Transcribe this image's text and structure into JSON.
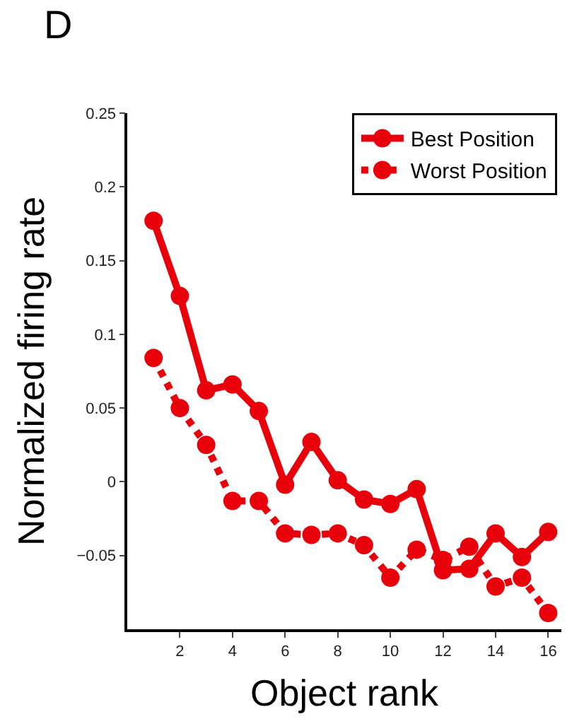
{
  "chart_data": {
    "type": "line",
    "xlabel": "Object rank",
    "ylabel": "Normalized firing rate",
    "annotations": [
      "D"
    ],
    "x": [
      1,
      2,
      3,
      4,
      5,
      6,
      7,
      8,
      9,
      10,
      11,
      12,
      13,
      14,
      15,
      16
    ],
    "series": [
      {
        "name": "Best Position",
        "color": "#e8000b",
        "line_style": "solid",
        "values": [
          0.177,
          0.126,
          0.062,
          0.066,
          0.048,
          -0.002,
          0.027,
          0.001,
          -0.012,
          -0.015,
          -0.005,
          -0.06,
          -0.059,
          -0.035,
          -0.051,
          -0.034
        ]
      },
      {
        "name": "Worst Position",
        "color": "#e8000b",
        "line_style": "dotted",
        "values": [
          0.084,
          0.05,
          0.025,
          -0.013,
          -0.013,
          -0.035,
          -0.036,
          -0.035,
          -0.043,
          -0.065,
          -0.046,
          -0.053,
          -0.044,
          -0.071,
          -0.065,
          -0.089
        ]
      }
    ],
    "xlim": [
      0,
      16.5
    ],
    "xticks": [
      2,
      4,
      6,
      8,
      10,
      12,
      14,
      16
    ],
    "ylim": [
      -0.1,
      0.25
    ],
    "yticks": [
      {
        "value": -0.05,
        "label": "−0.05"
      },
      0,
      0.05,
      0.1,
      0.15,
      0.2,
      0.25
    ],
    "marker": "circle",
    "legend": "top right"
  }
}
